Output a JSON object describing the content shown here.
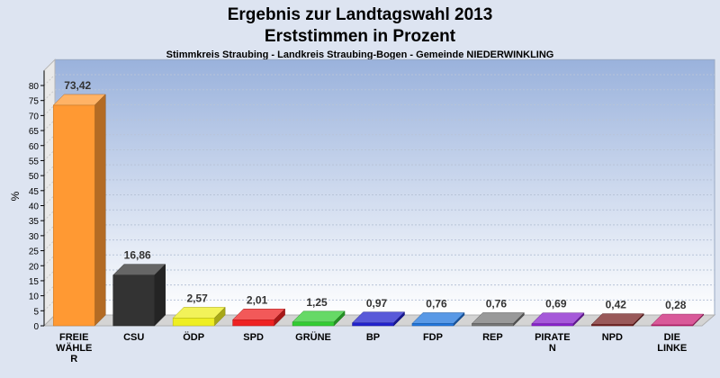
{
  "chart_data": {
    "type": "bar",
    "title_line1": "Ergebnis zur Landtagswahl 2013",
    "title_line2": "Erststimmen in Prozent",
    "subtitle": "Stimmkreis Straubing - Landkreis Straubing-Bogen - Gemeinde NIEDERWINKLING",
    "ylabel": "%",
    "ylim": [
      0,
      85
    ],
    "yticks": [
      0,
      5,
      10,
      15,
      20,
      25,
      30,
      35,
      40,
      45,
      50,
      55,
      60,
      65,
      70,
      75,
      80
    ],
    "grid": true,
    "categories": [
      [
        "FREIE",
        "WÄHLE",
        "R"
      ],
      [
        "CSU"
      ],
      [
        "ÖDP"
      ],
      [
        "SPD"
      ],
      [
        "GRÜNE"
      ],
      [
        "BP"
      ],
      [
        "FDP"
      ],
      [
        "REP"
      ],
      [
        "PIRATE",
        "N"
      ],
      [
        "NPD"
      ],
      [
        "DIE",
        "LINKE"
      ]
    ],
    "values": [
      73.42,
      16.86,
      2.57,
      2.01,
      1.25,
      0.97,
      0.76,
      0.76,
      0.69,
      0.42,
      0.28
    ],
    "value_labels": [
      "73,42",
      "16,86",
      "2,57",
      "2,01",
      "1,25",
      "0,97",
      "0,76",
      "0,76",
      "0,69",
      "0,42",
      "0,28"
    ],
    "colors": [
      "#ff9933",
      "#333333",
      "#eeee22",
      "#ee2222",
      "#33cc33",
      "#2222cc",
      "#2277dd",
      "#777777",
      "#8822cc",
      "#772222",
      "#cc2277"
    ]
  }
}
